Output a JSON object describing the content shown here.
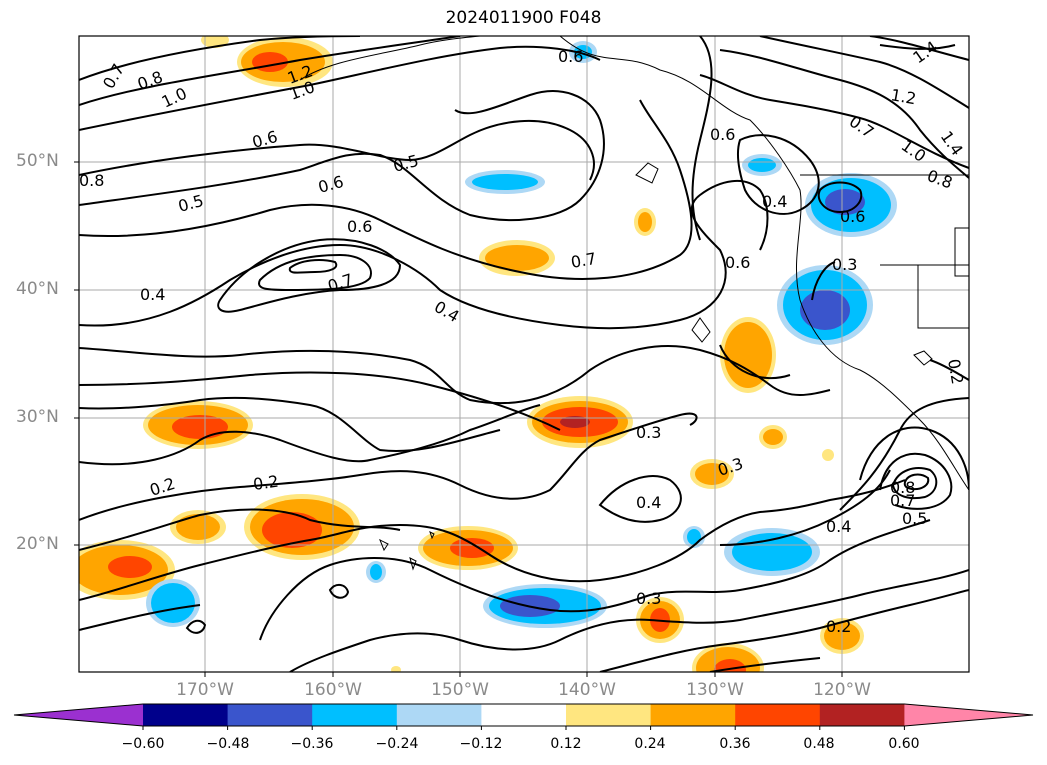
{
  "title": "2024011900 F048",
  "axes": {
    "lat_labels": [
      "50°N",
      "40°N",
      "30°N",
      "20°N"
    ],
    "lon_labels": [
      "170°W",
      "160°W",
      "150°W",
      "140°W",
      "130°W",
      "120°W"
    ]
  },
  "contour_labels": [
    "0.7",
    "0.8",
    "1.0",
    "1.2",
    "1.0",
    "0.6",
    "0.8",
    "0.5",
    "0.6",
    "0.5",
    "0.6",
    "0.7",
    "0.4",
    "0.7",
    "0.4",
    "0.6",
    "0.6",
    "0.4",
    "0.6",
    "0.3",
    "0.3",
    "0.2",
    "0.2",
    "0.3",
    "0.4",
    "0.4",
    "0.3",
    "0.2",
    "0.8",
    "0.7",
    "0.5",
    "0.7",
    "1.2",
    "1.4",
    "1.0",
    "1.4",
    "0.8",
    "0.2",
    "0.6"
  ],
  "colorbar": {
    "tick_labels": [
      "−0.60",
      "−0.48",
      "−0.36",
      "−0.24",
      "−0.12",
      "0.12",
      "0.24",
      "0.36",
      "0.48",
      "0.60"
    ],
    "colors": [
      "#9b30d0",
      "#00008b",
      "#3a55cc",
      "#00bfff",
      "#add8f5",
      "#ffffff",
      "#ffe680",
      "#ffa500",
      "#ff4500",
      "#b22222",
      "#ff85a8"
    ]
  },
  "colors": {
    "orange": "#ffa500",
    "red_orange": "#ff4500",
    "yellow": "#ffe680",
    "cyan": "#00bfff",
    "light_blue": "#add8f5",
    "blue": "#3a55cc",
    "contour": "#000000",
    "grid": "#aaaaaa",
    "axis_label": "#8a8a8a"
  }
}
